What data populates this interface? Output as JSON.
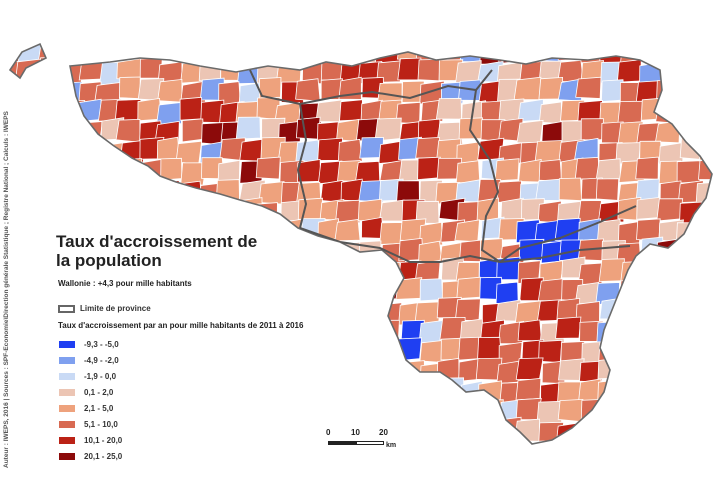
{
  "map": {
    "title": "Taux d'accroissement de la population",
    "region_value": "Wallonie : +4,3 pour mille habitants",
    "province_limit_label": "Limite de province",
    "legend_title": "Taux d'accroissement par an pour mille habitants de 2011 à 2016",
    "classes": [
      {
        "label": "-9,3 - -5,0",
        "color": "#1f3ff2"
      },
      {
        "label": "-4,9 - -2,0",
        "color": "#7fa0ef"
      },
      {
        "label": "-1,9 - 0,0",
        "color": "#c9daf5"
      },
      {
        "label": "0,1 - 2,0",
        "color": "#ecc5b4"
      },
      {
        "label": "2,1 - 5,0",
        "color": "#eea27d"
      },
      {
        "label": "5,1 - 10,0",
        "color": "#d86a52"
      },
      {
        "label": "10,1 - 20,0",
        "color": "#bb2216"
      },
      {
        "label": "20,1 - 25,0",
        "color": "#8c0a0a"
      }
    ],
    "scale": {
      "ticks": [
        "0",
        "10",
        "20"
      ],
      "unit": "km"
    },
    "credit": "Auteur : IWEPS, 2016 | Sources : SPF-Economie\\Direction générale Statistique ; Registre National ; Calculs : IWEPS"
  }
}
